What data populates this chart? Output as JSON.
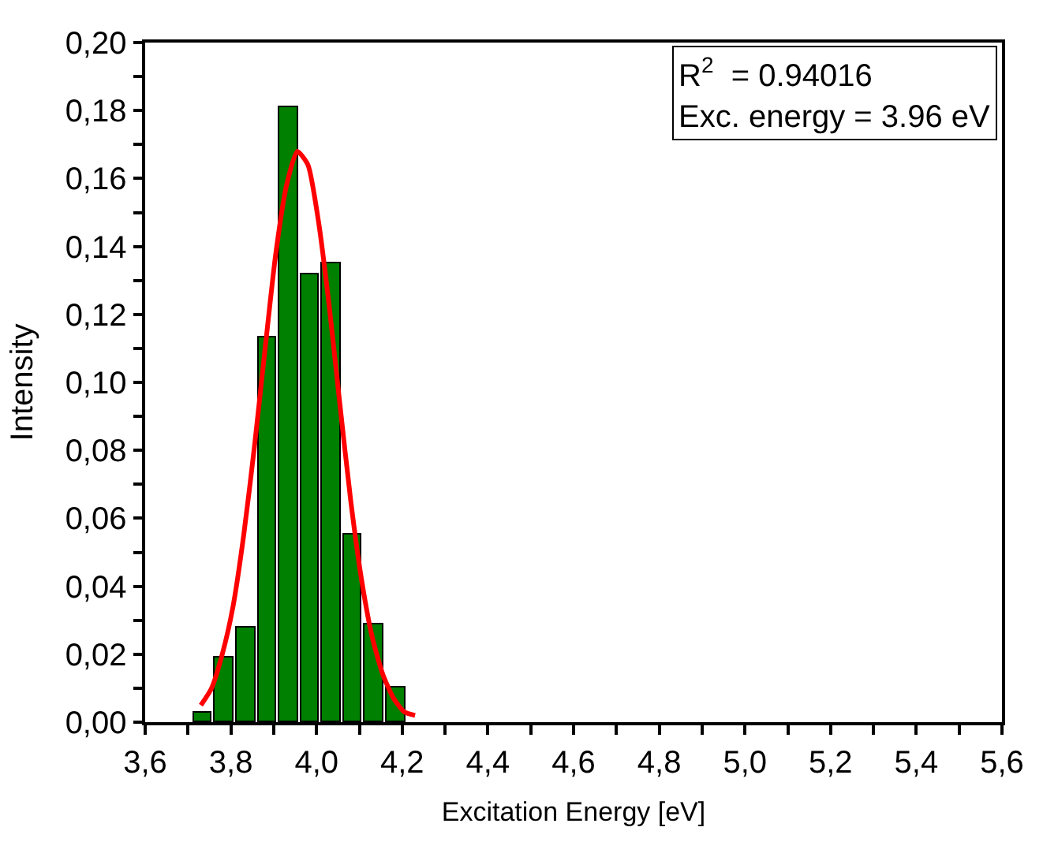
{
  "chart_data": {
    "type": "histogram",
    "xlabel": "Excitation Energy [eV]",
    "ylabel": "Intensity",
    "bins": [
      3.71,
      3.76,
      3.81,
      3.86,
      3.91,
      3.96,
      4.01,
      4.06,
      4.11,
      4.16,
      4.21
    ],
    "values": [
      0.003,
      0.019,
      0.028,
      0.113,
      0.181,
      0.132,
      0.135,
      0.055,
      0.029,
      0.01
    ],
    "color": "#008000",
    "series": [
      {
        "type": "line",
        "color": "#ff0000",
        "x": [
          3.73,
          3.755,
          3.78,
          3.805,
          3.83,
          3.855,
          3.88,
          3.905,
          3.93,
          3.955,
          3.98,
          4.005,
          4.03,
          4.055,
          4.08,
          4.105,
          4.13,
          4.155,
          4.18,
          4.205,
          4.23
        ],
        "values": [
          0.005,
          0.01,
          0.02,
          0.034,
          0.055,
          0.081,
          0.11,
          0.138,
          0.158,
          0.168,
          0.164,
          0.147,
          0.122,
          0.093,
          0.065,
          0.042,
          0.025,
          0.014,
          0.007,
          0.003,
          0.002
        ]
      }
    ],
    "annotations": [
      "R$^{2}$  = 0.94016",
      "Exc. energy = 3.96 eV"
    ],
    "xlim": [
      3.6,
      5.6
    ],
    "xticks": [
      {
        "value": 3.6,
        "label": "3,6"
      },
      {
        "value": 3.7,
        "label": null
      },
      {
        "value": 3.8,
        "label": "3,8"
      },
      {
        "value": 3.9,
        "label": null
      },
      {
        "value": 4.0,
        "label": "4,0"
      },
      {
        "value": 4.1,
        "label": null
      },
      {
        "value": 4.2,
        "label": "4,2"
      },
      {
        "value": 4.3,
        "label": null
      },
      {
        "value": 4.4,
        "label": "4,4"
      },
      {
        "value": 4.5,
        "label": null
      },
      {
        "value": 4.6,
        "label": "4,6"
      },
      {
        "value": 4.7,
        "label": null
      },
      {
        "value": 4.8,
        "label": "4,8"
      },
      {
        "value": 4.9,
        "label": null
      },
      {
        "value": 5.0,
        "label": "5,0"
      },
      {
        "value": 5.1,
        "label": null
      },
      {
        "value": 5.2,
        "label": "5,2"
      },
      {
        "value": 5.3,
        "label": null
      },
      {
        "value": 5.4,
        "label": "5,4"
      },
      {
        "value": 5.5,
        "label": null
      },
      {
        "value": 5.6,
        "label": "5,6"
      }
    ],
    "ylim": [
      0,
      0.2
    ],
    "yticks": [
      {
        "value": 0,
        "label": "0,00"
      },
      {
        "value": 0.01,
        "label": null
      },
      {
        "value": 0.02,
        "label": "0,02"
      },
      {
        "value": 0.03,
        "label": null
      },
      {
        "value": 0.04,
        "label": "0,04"
      },
      {
        "value": 0.05,
        "label": null
      },
      {
        "value": 0.06,
        "label": "0,06"
      },
      {
        "value": 0.07,
        "label": null
      },
      {
        "value": 0.08,
        "label": "0,08"
      },
      {
        "value": 0.09,
        "label": null
      },
      {
        "value": 0.1,
        "label": "0,10"
      },
      {
        "value": 0.11,
        "label": null
      },
      {
        "value": 0.12,
        "label": "0,12"
      },
      {
        "value": 0.13,
        "label": null
      },
      {
        "value": 0.14,
        "label": "0,14"
      },
      {
        "value": 0.15,
        "label": null
      },
      {
        "value": 0.16,
        "label": "0,16"
      },
      {
        "value": 0.17,
        "label": null
      },
      {
        "value": 0.18,
        "label": "0,18"
      },
      {
        "value": 0.19,
        "label": null
      },
      {
        "value": 0.2,
        "label": "0,20"
      }
    ],
    "marker": "none",
    "line_style": "solid"
  }
}
